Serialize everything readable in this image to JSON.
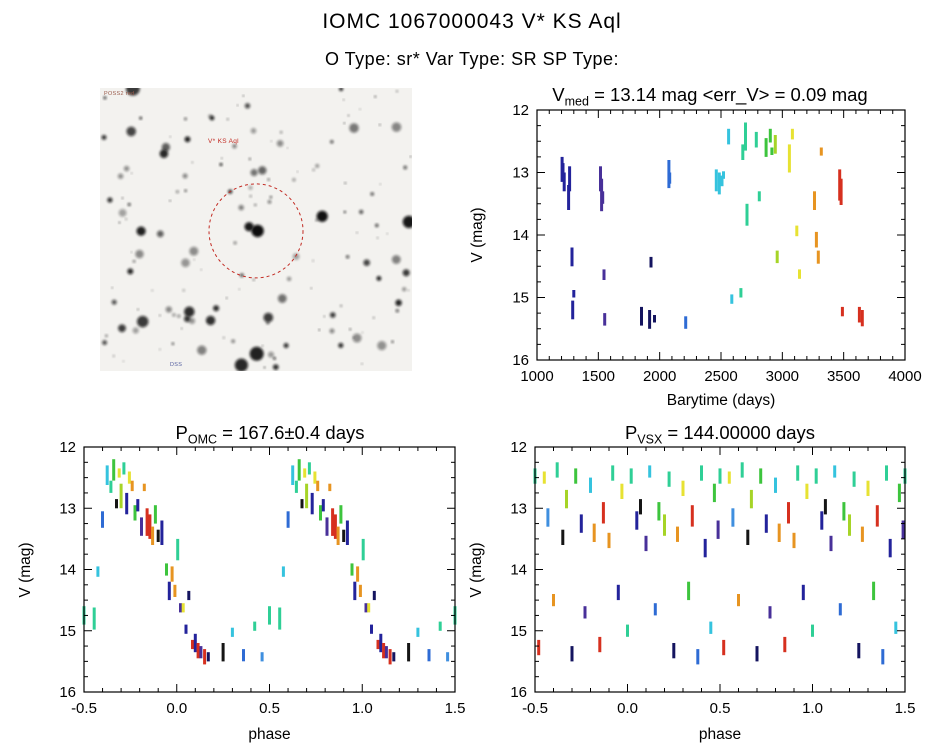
{
  "header": {
    "title": "IOMC 1067000043    V* KS Aql",
    "subtitle": "O Type: sr*   Var Type: SR   SP Type:"
  },
  "finder": {
    "target_label": "V* KS Aql",
    "corner_top_left": "POSS2 red",
    "corner_bottom_left": "DSS",
    "circle_color": "#c22a22",
    "label_color": "#c22a22"
  },
  "palette": {
    "navy": "#23239b",
    "indigo": "#483099",
    "darknavy": "#14145f",
    "black": "#151515",
    "blue": "#2e6bd4",
    "skyblue": "#3f8fdf",
    "cyan": "#35c3de",
    "teal": "#2fcf96",
    "green": "#3dc43d",
    "ygreen": "#a6d427",
    "yellow": "#e7e232",
    "orange": "#e79421",
    "red": "#d6301f"
  },
  "chart_data": [
    {
      "id": "lightcurve",
      "type": "scatter",
      "fold": false,
      "title_parts": {
        "prefix": "V",
        "sub": "med",
        "rest": " = 13.14 mag <err_V> = 0.09 mag"
      },
      "xlabel": "Barytime (days)",
      "ylabel": "V (mag)",
      "xlim": [
        1000,
        4000
      ],
      "ylim": [
        16,
        12
      ],
      "xticks": [
        1000,
        1500,
        2000,
        2500,
        3000,
        3500,
        4000
      ],
      "xtick_labels": [
        "1000",
        "1500",
        "2000",
        "2500",
        "3000",
        "3500",
        "4000"
      ],
      "yticks": [
        12,
        13,
        14,
        15,
        16
      ],
      "ytick_labels": [
        "12",
        "13",
        "14",
        "15",
        "16"
      ],
      "x_minor": 100,
      "y_minor": 0.25,
      "segments": [
        [
          1205,
          12.75,
          13.15,
          "navy"
        ],
        [
          1212,
          12.85,
          13.05,
          "navy"
        ],
        [
          1222,
          13.0,
          13.3,
          "navy"
        ],
        [
          1258,
          13.2,
          13.6,
          "navy"
        ],
        [
          1266,
          12.9,
          13.3,
          "navy"
        ],
        [
          1285,
          14.2,
          14.5,
          "navy"
        ],
        [
          1291,
          15.05,
          15.35,
          "navy"
        ],
        [
          1300,
          14.88,
          15.0,
          "navy"
        ],
        [
          1518,
          12.9,
          13.3,
          "indigo"
        ],
        [
          1527,
          13.1,
          13.62,
          "indigo"
        ],
        [
          1536,
          13.3,
          13.5,
          "indigo"
        ],
        [
          1546,
          14.55,
          14.72,
          "indigo"
        ],
        [
          1552,
          15.25,
          15.45,
          "indigo"
        ],
        [
          1852,
          15.15,
          15.45,
          "darknavy"
        ],
        [
          1918,
          15.2,
          15.5,
          "darknavy"
        ],
        [
          1929,
          14.35,
          14.52,
          "darknavy"
        ],
        [
          1958,
          15.28,
          15.4,
          "darknavy"
        ],
        [
          2075,
          12.8,
          13.25,
          "blue"
        ],
        [
          2082,
          13.0,
          13.18,
          "blue"
        ],
        [
          2212,
          15.3,
          15.5,
          "blue"
        ],
        [
          2462,
          12.95,
          13.3,
          "cyan"
        ],
        [
          2486,
          13.0,
          13.35,
          "cyan"
        ],
        [
          2508,
          13.05,
          13.22,
          "cyan"
        ],
        [
          2520,
          12.98,
          13.1,
          "cyan"
        ],
        [
          2562,
          12.3,
          12.55,
          "cyan"
        ],
        [
          2588,
          14.95,
          15.1,
          "cyan"
        ],
        [
          2662,
          14.85,
          15.0,
          "teal"
        ],
        [
          2678,
          12.55,
          12.8,
          "teal"
        ],
        [
          2700,
          12.2,
          12.65,
          "teal"
        ],
        [
          2712,
          13.5,
          13.85,
          "teal"
        ],
        [
          2788,
          12.35,
          12.6,
          "teal"
        ],
        [
          2812,
          13.3,
          13.46,
          "teal"
        ],
        [
          2868,
          12.45,
          12.75,
          "green"
        ],
        [
          2902,
          12.3,
          12.52,
          "green"
        ],
        [
          2915,
          12.6,
          12.72,
          "green"
        ],
        [
          2943,
          12.4,
          12.7,
          "ygreen"
        ],
        [
          2958,
          14.25,
          14.45,
          "ygreen"
        ],
        [
          3058,
          12.55,
          13.0,
          "yellow"
        ],
        [
          3082,
          12.3,
          12.47,
          "yellow"
        ],
        [
          3118,
          13.85,
          14.02,
          "yellow"
        ],
        [
          3140,
          14.55,
          14.7,
          "yellow"
        ],
        [
          3262,
          13.3,
          13.6,
          "orange"
        ],
        [
          3278,
          13.95,
          14.2,
          "orange"
        ],
        [
          3293,
          14.25,
          14.46,
          "orange"
        ],
        [
          3318,
          12.6,
          12.73,
          "orange"
        ],
        [
          3468,
          12.95,
          13.45,
          "red"
        ],
        [
          3479,
          13.1,
          13.52,
          "red"
        ],
        [
          3490,
          15.15,
          15.3,
          "red"
        ],
        [
          3628,
          15.15,
          15.4,
          "red"
        ],
        [
          3652,
          15.2,
          15.46,
          "red"
        ]
      ]
    },
    {
      "id": "fold_omc",
      "type": "scatter",
      "fold": true,
      "title_parts": {
        "prefix": "P",
        "sub": "OMC",
        "rest": " = 167.6±0.4 days"
      },
      "xlabel": "phase",
      "ylabel": "V (mag)",
      "xlim": [
        -0.5,
        1.5
      ],
      "ylim": [
        16,
        12
      ],
      "xticks": [
        -0.5,
        0.0,
        0.5,
        1.0,
        1.5
      ],
      "xtick_labels": [
        "-0.5",
        "0.0",
        "0.5",
        "1.0",
        "1.5"
      ],
      "yticks": [
        12,
        13,
        14,
        15,
        16
      ],
      "ytick_labels": [
        "12",
        "13",
        "14",
        "15",
        "16"
      ],
      "x_minor": 0.1,
      "y_minor": 0.25,
      "segments": [
        [
          0.555,
          14.62,
          14.98,
          "teal"
        ],
        [
          0.575,
          13.95,
          14.12,
          "cyan"
        ],
        [
          0.6,
          13.05,
          13.32,
          "blue"
        ],
        [
          0.625,
          12.3,
          12.62,
          "cyan"
        ],
        [
          0.645,
          12.55,
          12.75,
          "teal"
        ],
        [
          0.66,
          12.2,
          12.55,
          "green"
        ],
        [
          0.675,
          12.85,
          13.0,
          "black"
        ],
        [
          0.69,
          12.35,
          12.5,
          "yellow"
        ],
        [
          0.7,
          12.6,
          13.0,
          "ygreen"
        ],
        [
          0.715,
          12.25,
          12.45,
          "teal"
        ],
        [
          0.73,
          12.75,
          13.1,
          "navy"
        ],
        [
          0.745,
          12.4,
          12.6,
          "yellow"
        ],
        [
          0.76,
          12.55,
          12.72,
          "orange"
        ],
        [
          0.775,
          12.95,
          13.2,
          "green"
        ],
        [
          0.79,
          12.85,
          13.05,
          "navy"
        ],
        [
          0.81,
          13.15,
          13.45,
          "indigo"
        ],
        [
          0.825,
          12.6,
          12.72,
          "orange"
        ],
        [
          0.84,
          13.0,
          13.45,
          "red"
        ],
        [
          0.855,
          13.1,
          13.5,
          "red"
        ],
        [
          0.87,
          13.3,
          13.6,
          "orange"
        ],
        [
          0.885,
          12.95,
          13.25,
          "green"
        ],
        [
          0.9,
          13.35,
          13.55,
          "black"
        ],
        [
          0.92,
          13.2,
          13.6,
          "navy"
        ],
        [
          0.945,
          13.9,
          14.1,
          "green"
        ],
        [
          0.96,
          14.2,
          14.5,
          "navy"
        ],
        [
          0.975,
          13.95,
          14.2,
          "orange"
        ],
        [
          0.99,
          14.25,
          14.45,
          "orange"
        ],
        [
          0.005,
          13.5,
          13.85,
          "teal"
        ],
        [
          0.02,
          14.55,
          14.7,
          "indigo"
        ],
        [
          0.035,
          14.55,
          14.7,
          "yellow"
        ],
        [
          0.05,
          14.9,
          15.05,
          "navy"
        ],
        [
          0.065,
          14.35,
          14.5,
          "darknavy"
        ],
        [
          0.085,
          15.15,
          15.3,
          "red"
        ],
        [
          0.1,
          15.05,
          15.35,
          "navy"
        ],
        [
          0.115,
          15.2,
          15.45,
          "red"
        ],
        [
          0.13,
          15.25,
          15.45,
          "indigo"
        ],
        [
          0.15,
          15.3,
          15.55,
          "red"
        ],
        [
          0.17,
          15.35,
          15.5,
          "darknavy"
        ],
        [
          0.25,
          15.2,
          15.5,
          "black"
        ],
        [
          0.3,
          14.95,
          15.1,
          "cyan"
        ],
        [
          0.36,
          15.3,
          15.5,
          "blue"
        ],
        [
          0.42,
          14.85,
          15.0,
          "teal"
        ],
        [
          0.46,
          15.35,
          15.5,
          "skyblue"
        ],
        [
          0.5,
          14.6,
          14.9,
          "teal"
        ]
      ]
    },
    {
      "id": "fold_vsx",
      "type": "scatter",
      "fold": true,
      "title_parts": {
        "prefix": "P",
        "sub": "VSX",
        "rest": " = 144.00000 days"
      },
      "xlabel": "phase",
      "ylabel": "V (mag)",
      "xlim": [
        -0.5,
        1.5
      ],
      "ylim": [
        16,
        12
      ],
      "xticks": [
        -0.5,
        0.0,
        0.5,
        1.0,
        1.5
      ],
      "xtick_labels": [
        "-0.5",
        "0.0",
        "0.5",
        "1.0",
        "1.5"
      ],
      "yticks": [
        12,
        13,
        14,
        15,
        16
      ],
      "ytick_labels": [
        "12",
        "13",
        "14",
        "15",
        "16"
      ],
      "x_minor": 0.1,
      "y_minor": 0.25,
      "segments": [
        [
          0.02,
          12.35,
          12.6,
          "teal"
        ],
        [
          0.05,
          13.05,
          13.35,
          "navy"
        ],
        [
          0.07,
          12.85,
          13.1,
          "black"
        ],
        [
          0.1,
          13.45,
          13.7,
          "indigo"
        ],
        [
          0.12,
          12.3,
          12.5,
          "cyan"
        ],
        [
          0.15,
          14.55,
          14.75,
          "blue"
        ],
        [
          0.17,
          12.9,
          13.2,
          "green"
        ],
        [
          0.2,
          13.1,
          13.45,
          "ygreen"
        ],
        [
          0.225,
          12.4,
          12.65,
          "teal"
        ],
        [
          0.25,
          15.2,
          15.45,
          "darknavy"
        ],
        [
          0.27,
          13.3,
          13.55,
          "orange"
        ],
        [
          0.3,
          12.55,
          12.8,
          "yellow"
        ],
        [
          0.33,
          14.2,
          14.5,
          "green"
        ],
        [
          0.35,
          12.95,
          13.3,
          "red"
        ],
        [
          0.38,
          15.3,
          15.55,
          "blue"
        ],
        [
          0.4,
          12.3,
          12.55,
          "teal"
        ],
        [
          0.42,
          13.5,
          13.8,
          "navy"
        ],
        [
          0.45,
          14.85,
          15.05,
          "cyan"
        ],
        [
          0.47,
          12.6,
          12.9,
          "green"
        ],
        [
          0.49,
          13.2,
          13.5,
          "indigo"
        ],
        [
          0.5,
          12.35,
          12.6,
          "teal"
        ],
        [
          0.52,
          15.15,
          15.4,
          "red"
        ],
        [
          0.55,
          12.4,
          12.6,
          "yellow"
        ],
        [
          0.57,
          13.0,
          13.3,
          "skyblue"
        ],
        [
          0.6,
          14.4,
          14.6,
          "orange"
        ],
        [
          0.62,
          12.25,
          12.5,
          "teal"
        ],
        [
          0.65,
          13.35,
          13.6,
          "black"
        ],
        [
          0.67,
          12.7,
          13.0,
          "ygreen"
        ],
        [
          0.7,
          15.25,
          15.5,
          "darknavy"
        ],
        [
          0.72,
          12.35,
          12.6,
          "green"
        ],
        [
          0.75,
          13.1,
          13.4,
          "navy"
        ],
        [
          0.77,
          14.6,
          14.8,
          "indigo"
        ],
        [
          0.8,
          12.5,
          12.75,
          "cyan"
        ],
        [
          0.82,
          13.25,
          13.55,
          "orange"
        ],
        [
          0.85,
          15.1,
          15.35,
          "red"
        ],
        [
          0.87,
          12.9,
          13.25,
          "red"
        ],
        [
          0.9,
          13.4,
          13.65,
          "orange"
        ],
        [
          0.92,
          12.3,
          12.55,
          "teal"
        ],
        [
          0.95,
          14.25,
          14.5,
          "navy"
        ],
        [
          0.97,
          12.6,
          12.85,
          "yellow"
        ],
        [
          0.0,
          14.9,
          15.1,
          "teal"
        ]
      ]
    }
  ]
}
